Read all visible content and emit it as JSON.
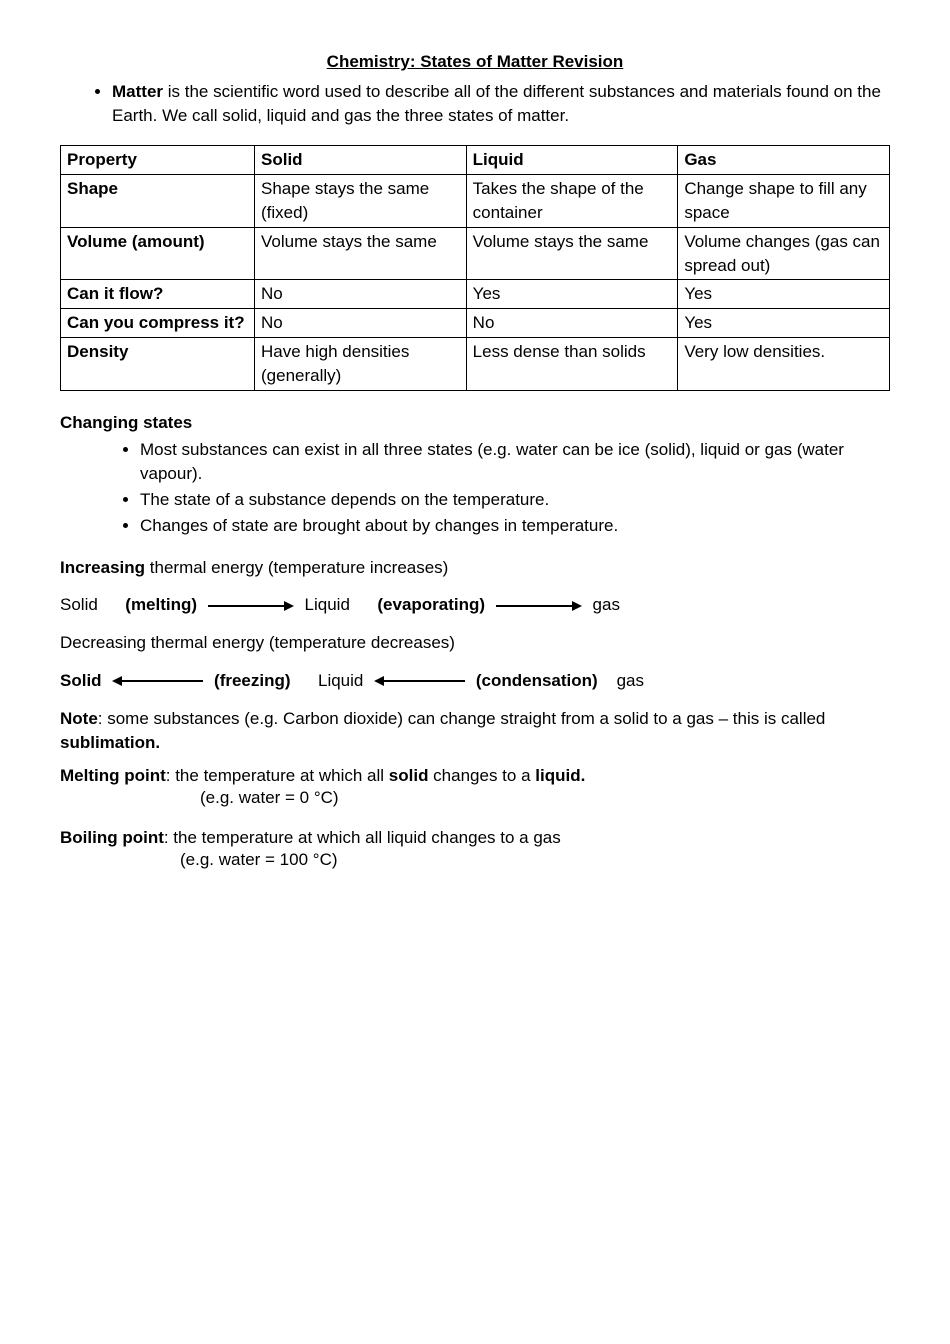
{
  "title": "Chemistry:  States of Matter Revision",
  "intro": "is the scientific word used to describe all of the different substances and materials found on the Earth.  We call solid, liquid and gas the three states of matter.",
  "intro_bold": "Matter",
  "table": {
    "rows": [
      {
        "c0": "Property",
        "c1": "Solid",
        "c2": "Liquid",
        "c3": "Gas",
        "b0": true,
        "b1": true,
        "b2": true,
        "b3": true
      },
      {
        "c0": "Shape",
        "c1": "Shape stays the same (fixed)",
        "c2": "Takes the shape of the container",
        "c3": "Change shape to fill any space",
        "b0": true
      },
      {
        "c0": "Volume (amount)",
        "c1": "Volume stays the same",
        "c2": "Volume stays the same",
        "c3": "Volume changes (gas can spread out)",
        "b0": true
      },
      {
        "c0": "Can it flow?",
        "c1": "No",
        "c2": "Yes",
        "c3": "Yes",
        "b0": true
      },
      {
        "c0": "Can you compress it?",
        "c1": "No",
        "c2": "No",
        "c3": "Yes",
        "b0": true
      },
      {
        "c0": "Density",
        "c1": "Have high densities (generally)",
        "c2": "Less dense than solids",
        "c3": "Very low densities.",
        "b0": true
      }
    ],
    "col_widths": [
      "22%",
      "24%",
      "24%",
      "24%"
    ]
  },
  "changing_heading": "Changing states",
  "changing_bullets": [
    "Most substances can exist in all three states (e.g. water can be ice (solid), liquid or gas (water vapour).",
    "The state of a substance depends on the temperature.",
    "Changes of state are brought about by changes in temperature."
  ],
  "increasing_line_pre": "Increasing",
  "increasing_line_post": " thermal energy (temperature increases)",
  "line1": {
    "p1": "Solid",
    "p2": "(melting)",
    "p3": "Liquid",
    "p4": "(evaporating)",
    "p5": "gas"
  },
  "decreasing": "Decreasing thermal energy (temperature decreases)",
  "line2": {
    "p1": "Solid",
    "p2": "(freezing)",
    "p3": "Liquid",
    "p4": "(condensation)",
    "p5": "gas"
  },
  "note_pre": "Note",
  "note_mid": ":  some substances (e.g. Carbon dioxide) can change straight from a solid to a gas – this is called ",
  "note_sub": "sublimation.",
  "melting_pre": "Melting point",
  "melting_mid": ":  the temperature at which all ",
  "melting_solid": "solid",
  "melting_mid2": " changes to a ",
  "melting_liquid": "liquid.",
  "melting_eg": "(e.g. water = 0 °C)",
  "boiling_pre": "Boiling point",
  "boiling_post": ":  the temperature at which all liquid changes to a gas",
  "boiling_eg": "(e.g. water = 100 °C)",
  "arrow": {
    "stroke": "#000",
    "stroke_width": 2,
    "length": 80,
    "head_size": 8
  }
}
